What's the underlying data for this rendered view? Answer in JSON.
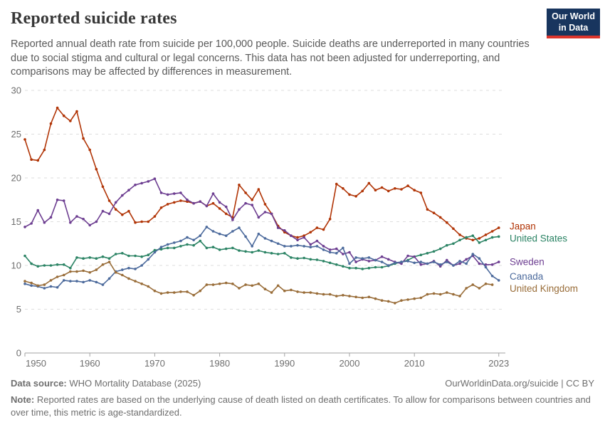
{
  "header": {
    "title": "Reported suicide rates",
    "subtitle": "Reported annual death rate from suicide per 100,000 people. Suicide deaths are underreported in many countries due to social stigma and cultural or legal concerns. This data has not been adjusted for underreporting, and comparisons may be affected by differences in measurement.",
    "logo": {
      "line1": "Our World",
      "line2": "in Data",
      "bg_color": "#18355e",
      "accent_color": "#dc352c"
    }
  },
  "chart_data": {
    "type": "line",
    "title": "Reported suicide rates",
    "unit": "suicide deaths per 100,000 people",
    "xlabel": "",
    "ylabel": "",
    "x_start": 1950,
    "x_end": 2023,
    "ylim": [
      0,
      30
    ],
    "yticks": [
      0,
      5,
      10,
      15,
      20,
      25,
      30
    ],
    "xticks": [
      1950,
      1960,
      1970,
      1980,
      1990,
      2000,
      2010,
      2023
    ],
    "grid": "dashed-horizontal",
    "legend_position": "right-end-labels",
    "series": [
      {
        "name": "Japan",
        "color": "#b13507",
        "start_year": 1950,
        "values": [
          24.4,
          22.1,
          22.0,
          23.2,
          26.2,
          28.0,
          27.1,
          26.5,
          27.6,
          24.5,
          23.2,
          21.0,
          19.0,
          17.4,
          16.4,
          15.8,
          16.2,
          14.9,
          15.0,
          15.0,
          15.6,
          16.6,
          17.0,
          17.2,
          17.4,
          17.3,
          17.1,
          17.3,
          16.8,
          17.1,
          16.5,
          15.9,
          15.5,
          19.2,
          18.3,
          17.5,
          18.7,
          17.0,
          15.9,
          14.5,
          13.8,
          13.4,
          13.2,
          13.4,
          13.8,
          14.3,
          14.1,
          15.3,
          19.3,
          18.8,
          18.1,
          17.9,
          18.5,
          19.4,
          18.6,
          18.9,
          18.5,
          18.8,
          18.7,
          19.1,
          18.6,
          18.3,
          16.4,
          16.0,
          15.5,
          14.9,
          14.2,
          13.5,
          13.1,
          12.9,
          13.1,
          13.5,
          13.9,
          14.3
        ]
      },
      {
        "name": "United States",
        "color": "#2c8465",
        "start_year": 1950,
        "values": [
          11.1,
          10.2,
          9.9,
          10.0,
          10.0,
          10.1,
          10.1,
          9.7,
          10.9,
          10.8,
          10.9,
          10.8,
          11.0,
          10.8,
          11.3,
          11.4,
          11.1,
          11.1,
          11.0,
          11.2,
          11.75,
          11.85,
          12.0,
          12.0,
          12.2,
          12.4,
          12.3,
          12.8,
          12.0,
          12.1,
          11.8,
          11.9,
          12.0,
          11.7,
          11.6,
          11.5,
          11.7,
          11.5,
          11.4,
          11.3,
          11.4,
          10.9,
          10.8,
          10.85,
          10.7,
          10.65,
          10.5,
          10.3,
          10.1,
          9.9,
          9.7,
          9.7,
          9.6,
          9.7,
          9.8,
          9.8,
          9.95,
          10.2,
          10.4,
          10.6,
          11.0,
          11.2,
          11.4,
          11.6,
          11.9,
          12.3,
          12.5,
          12.9,
          13.2,
          13.4,
          12.6,
          12.9,
          13.2,
          13.3
        ]
      },
      {
        "name": "Sweden",
        "color": "#6d3e91",
        "start_year": 1950,
        "values": [
          14.4,
          14.8,
          16.3,
          14.9,
          15.5,
          17.5,
          17.4,
          14.9,
          15.6,
          15.3,
          14.6,
          15.0,
          16.2,
          15.9,
          17.2,
          18.0,
          18.6,
          19.2,
          19.4,
          19.6,
          19.9,
          18.3,
          18.1,
          18.2,
          18.3,
          17.5,
          17.1,
          17.3,
          16.8,
          18.2,
          17.2,
          16.7,
          15.2,
          16.4,
          17.1,
          16.9,
          15.5,
          16.1,
          15.9,
          14.3,
          14.0,
          13.4,
          12.9,
          13.2,
          12.4,
          12.8,
          12.2,
          11.8,
          11.9,
          11.3,
          11.5,
          10.4,
          10.7,
          10.5,
          10.6,
          11.0,
          10.7,
          10.4,
          10.2,
          11.1,
          11.0,
          10.1,
          10.2,
          10.5,
          9.9,
          10.6,
          10.0,
          10.2,
          10.7,
          11.1,
          10.2,
          10.1,
          10.1,
          10.4
        ]
      },
      {
        "name": "Canada",
        "color": "#4c6a9c",
        "start_year": 1950,
        "values": [
          7.9,
          7.7,
          7.6,
          7.4,
          7.6,
          7.5,
          8.3,
          8.2,
          8.2,
          8.1,
          8.3,
          8.1,
          7.8,
          8.5,
          9.3,
          9.5,
          9.7,
          9.6,
          10.0,
          10.7,
          11.5,
          12.1,
          12.4,
          12.6,
          12.8,
          13.2,
          12.9,
          13.4,
          14.4,
          13.9,
          13.6,
          13.4,
          13.9,
          14.3,
          13.3,
          12.2,
          13.6,
          13.1,
          12.8,
          12.5,
          12.2,
          12.2,
          12.3,
          12.2,
          12.1,
          12.2,
          11.8,
          11.5,
          11.4,
          12.0,
          10.2,
          10.9,
          10.8,
          10.9,
          10.6,
          10.4,
          10.0,
          10.3,
          10.4,
          10.5,
          10.3,
          10.4,
          10.2,
          10.4,
          10.1,
          10.4,
          10.0,
          10.5,
          10.2,
          11.3,
          10.8,
          9.8,
          8.8,
          8.3
        ]
      },
      {
        "name": "United Kingdom",
        "color": "#996d39",
        "start_year": 1950,
        "values": [
          8.2,
          8.0,
          7.7,
          7.8,
          8.3,
          8.7,
          8.9,
          9.3,
          9.3,
          9.4,
          9.2,
          9.5,
          10.1,
          10.4,
          9.2,
          8.9,
          8.5,
          8.2,
          7.9,
          7.6,
          7.1,
          6.8,
          6.9,
          6.9,
          7.0,
          7.0,
          6.6,
          7.1,
          7.8,
          7.8,
          7.9,
          8.0,
          7.9,
          7.4,
          7.8,
          7.7,
          7.9,
          7.3,
          6.9,
          7.7,
          7.1,
          7.2,
          7.0,
          6.9,
          6.9,
          6.8,
          6.7,
          6.7,
          6.5,
          6.6,
          6.5,
          6.4,
          6.3,
          6.4,
          6.2,
          6.0,
          5.9,
          5.7,
          6.0,
          6.1,
          6.2,
          6.3,
          6.7,
          6.8,
          6.7,
          6.9,
          6.7,
          6.5,
          7.4,
          7.8,
          7.4,
          7.9,
          7.8
        ]
      }
    ]
  },
  "footer": {
    "source_label": "Data source:",
    "source_text": "WHO Mortality Database (2025)",
    "link_text": "OurWorldinData.org/suicide | CC BY",
    "note_label": "Note:",
    "note_text": "Reported rates are based on the underlying cause of death listed on death certificates. To allow for comparisons between countries and over time, this metric is age-standardized."
  }
}
